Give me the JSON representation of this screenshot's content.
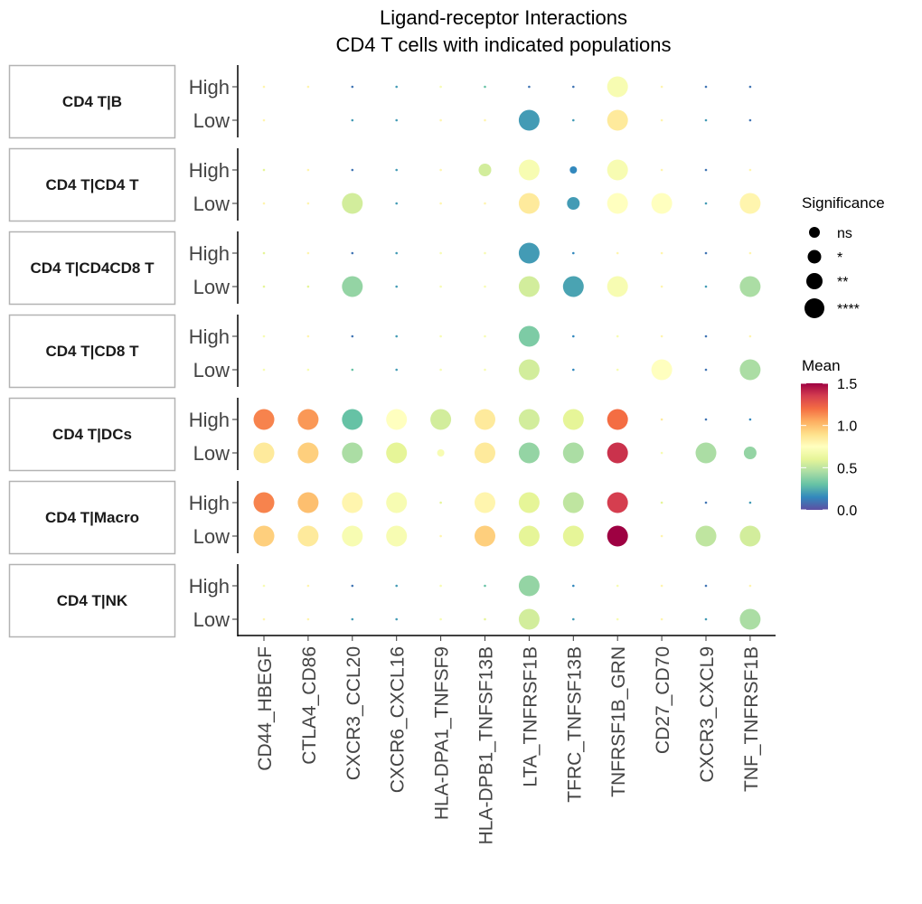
{
  "chart_data": {
    "type": "scatter",
    "title": "Ligand-receptor Interactions",
    "subtitle": "CD4 T cells with indicated populations",
    "x_categories": [
      "CD44_HBEGF",
      "CTLA4_CD86",
      "CXCR3_CCL20",
      "CXCR6_CXCL16",
      "HLA-DPA1_TNFSF9",
      "HLA-DPB1_TNFSF13B",
      "LTA_TNFRSF1B",
      "TFRC_TNFSF13B",
      "TNFRSF1B_GRN",
      "CD27_CD70",
      "CXCR3_CXCL9",
      "TNF_TNFRSF1B"
    ],
    "y_levels": [
      "High",
      "Low"
    ],
    "facets": [
      "CD4 T|B",
      "CD4 T|CD4 T",
      "CD4 T|CD4CD8 T",
      "CD4 T|CD8 T",
      "CD4 T|DCs",
      "CD4 T|Macro",
      "CD4 T|NK"
    ],
    "size_legend": {
      "title": "Significance",
      "levels": [
        "ns",
        "*",
        "**",
        "****"
      ]
    },
    "color_legend": {
      "title": "Mean",
      "ticks": [
        "1.5",
        "1.0",
        "0.5",
        "0.0"
      ],
      "range": [
        0,
        1.5
      ],
      "palette": "Spectral"
    },
    "mean": {
      "CD4 T|B": {
        "High": [
          0.8,
          0.8,
          0.1,
          0.2,
          0.7,
          0.3,
          0.1,
          0.1,
          0.7,
          0.8,
          0.1,
          0.1
        ],
        "Low": [
          0.8,
          null,
          0.2,
          0.2,
          0.8,
          0.8,
          0.2,
          0.2,
          0.85,
          0.8,
          0.2,
          0.1
        ]
      },
      "CD4 T|CD4 T": {
        "High": [
          0.6,
          0.8,
          0.1,
          0.2,
          0.8,
          0.55,
          0.7,
          0.15,
          0.7,
          0.8,
          0.1,
          0.8
        ],
        "Low": [
          0.8,
          0.8,
          0.55,
          0.2,
          0.8,
          0.8,
          0.85,
          0.2,
          0.75,
          0.75,
          0.2,
          0.8
        ]
      },
      "CD4 T|CD4CD8 T": {
        "High": [
          0.6,
          0.8,
          0.1,
          0.2,
          0.7,
          0.7,
          0.2,
          0.15,
          0.8,
          0.8,
          0.1,
          0.8
        ],
        "Low": [
          0.6,
          0.6,
          0.4,
          0.2,
          0.7,
          0.7,
          0.55,
          0.22,
          0.7,
          0.8,
          0.2,
          0.45
        ]
      },
      "CD4 T|CD8 T": {
        "High": [
          0.7,
          0.8,
          0.1,
          0.2,
          0.7,
          0.7,
          0.35,
          0.15,
          0.7,
          0.8,
          0.1,
          0.8
        ],
        "Low": [
          0.7,
          0.7,
          0.3,
          0.2,
          0.7,
          0.7,
          0.55,
          0.15,
          0.7,
          0.75,
          0.1,
          0.45
        ]
      },
      "CD4 T|DCs": {
        "High": [
          1.15,
          1.1,
          0.3,
          0.75,
          0.55,
          0.85,
          0.55,
          0.6,
          1.2,
          0.85,
          0.1,
          0.15
        ],
        "Low": [
          0.85,
          0.95,
          0.45,
          0.6,
          0.7,
          0.85,
          0.4,
          0.45,
          1.38,
          0.7,
          0.45,
          0.4
        ]
      },
      "CD4 T|Macro": {
        "High": [
          1.15,
          1.0,
          0.8,
          0.7,
          0.6,
          0.8,
          0.6,
          0.5,
          1.35,
          0.6,
          0.1,
          0.2
        ],
        "Low": [
          0.95,
          0.85,
          0.7,
          0.7,
          0.8,
          0.95,
          0.6,
          0.6,
          1.5,
          0.8,
          0.5,
          0.55
        ]
      },
      "CD4 T|NK": {
        "High": [
          0.7,
          0.8,
          0.1,
          0.2,
          0.7,
          0.3,
          0.4,
          0.15,
          0.7,
          0.8,
          0.1,
          0.8
        ],
        "Low": [
          0.8,
          0.8,
          0.2,
          0.2,
          0.7,
          0.6,
          0.55,
          0.2,
          0.7,
          0.8,
          0.2,
          0.45
        ]
      }
    },
    "significance": {
      "CD4 T|B": {
        "High": [
          0,
          0,
          0,
          0,
          0,
          0,
          0,
          0,
          3,
          0,
          0,
          0
        ],
        "Low": [
          0,
          3,
          0,
          0,
          0,
          0,
          3,
          0,
          3,
          0,
          0,
          0
        ]
      },
      "CD4 T|CD4 T": {
        "High": [
          0,
          0,
          0,
          0,
          0,
          2,
          3,
          1,
          3,
          0,
          0,
          0
        ],
        "Low": [
          0,
          0,
          3,
          0,
          0,
          0,
          3,
          2,
          3,
          3,
          0,
          3
        ]
      },
      "CD4 T|CD4CD8 T": {
        "High": [
          0,
          0,
          0,
          0,
          0,
          0,
          3,
          0,
          0,
          0,
          0,
          0
        ],
        "Low": [
          0,
          0,
          3,
          0,
          0,
          0,
          3,
          3,
          3,
          0,
          0,
          3
        ]
      },
      "CD4 T|CD8 T": {
        "High": [
          0,
          0,
          0,
          0,
          0,
          0,
          3,
          0,
          0,
          0,
          0,
          0
        ],
        "Low": [
          0,
          0,
          0,
          0,
          0,
          0,
          3,
          0,
          0,
          3,
          0,
          3
        ]
      },
      "CD4 T|DCs": {
        "High": [
          3,
          3,
          3,
          3,
          3,
          3,
          3,
          3,
          3,
          0,
          0,
          0
        ],
        "Low": [
          3,
          3,
          3,
          3,
          1,
          3,
          3,
          3,
          3,
          0,
          3,
          2
        ]
      },
      "CD4 T|Macro": {
        "High": [
          3,
          3,
          3,
          3,
          0,
          3,
          3,
          3,
          3,
          0,
          0,
          0
        ],
        "Low": [
          3,
          3,
          3,
          3,
          0,
          3,
          3,
          3,
          3,
          0,
          3,
          3
        ]
      },
      "CD4 T|NK": {
        "High": [
          0,
          0,
          0,
          0,
          0,
          0,
          3,
          0,
          0,
          0,
          0,
          0
        ],
        "Low": [
          0,
          0,
          0,
          0,
          0,
          0,
          3,
          0,
          0,
          0,
          0,
          3
        ]
      }
    }
  }
}
